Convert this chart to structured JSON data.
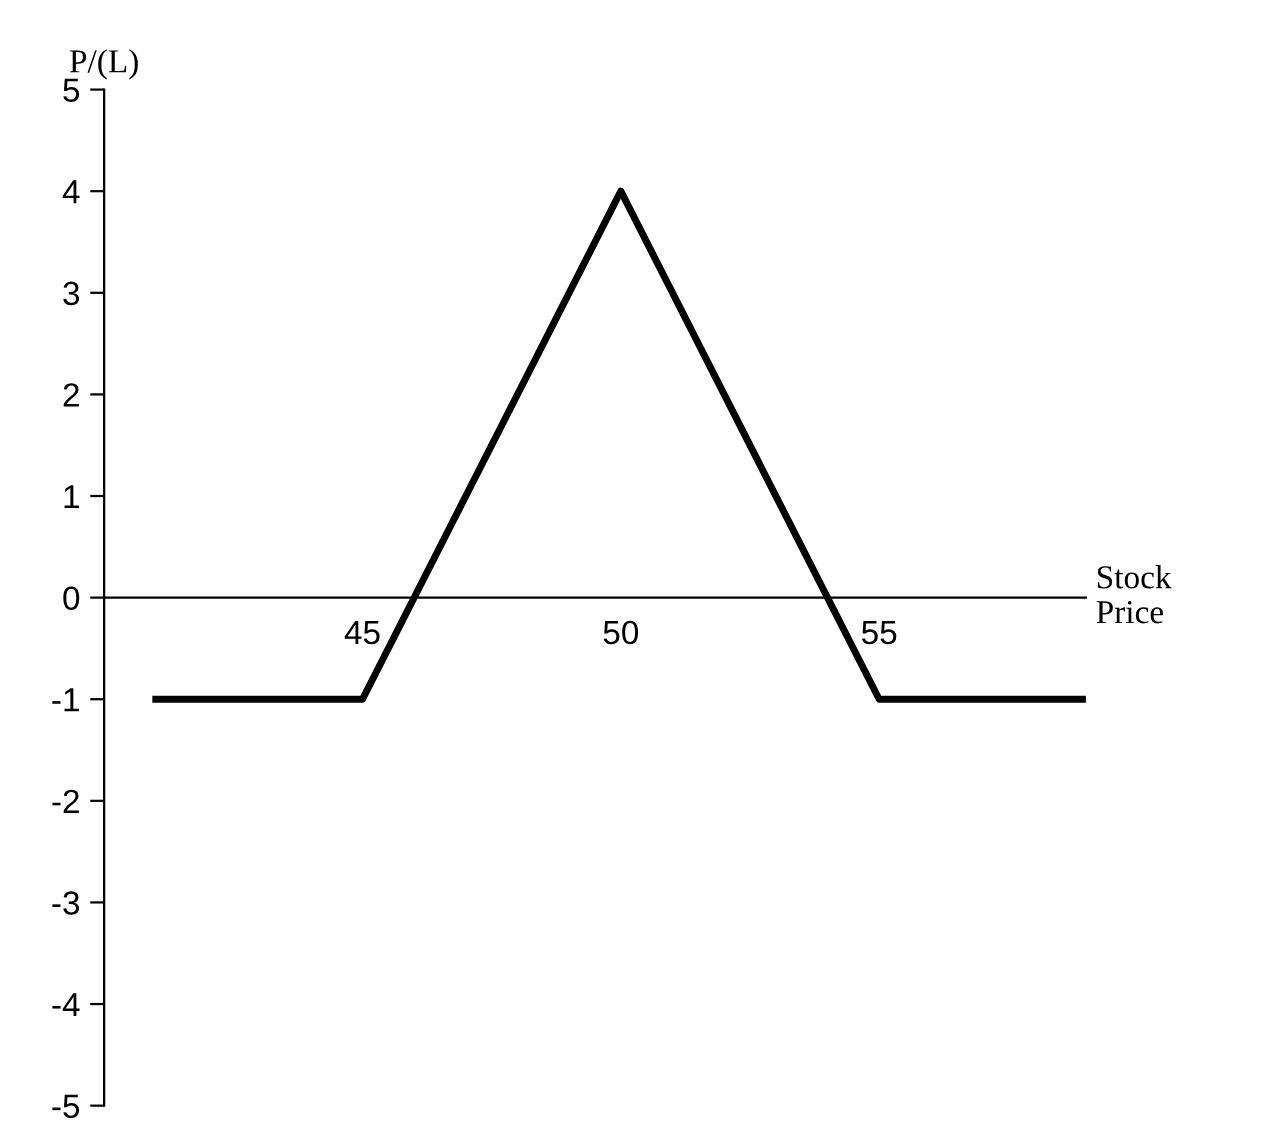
{
  "chart_data": {
    "type": "line",
    "xlabel": "Stock\nPrice",
    "ylabel": "P/(L)",
    "x": [
      41,
      45,
      50,
      55,
      59
    ],
    "series": [
      {
        "color": "#000000",
        "values": [
          -1,
          -1,
          4,
          -1,
          -1
        ]
      }
    ],
    "xlim": [
      40,
      59
    ],
    "ylim": [
      -5,
      5
    ],
    "xticks": [
      45,
      50,
      55
    ],
    "yticks": [
      -5,
      -4,
      -3,
      -2,
      -1,
      0,
      1,
      2,
      3,
      4,
      5
    ],
    "grid": false
  }
}
